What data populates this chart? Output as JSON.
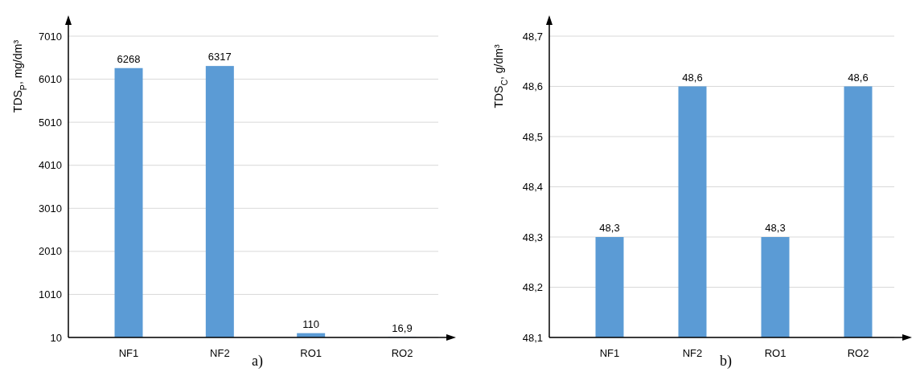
{
  "chart_data": [
    {
      "type": "bar",
      "ylabel": "TDS$_{P}$, mg/dm³",
      "categories": [
        "NF1",
        "NF2",
        "RO1",
        "RO2"
      ],
      "values": [
        6268,
        6317,
        110,
        16.9
      ],
      "value_labels": [
        "6268",
        "6317",
        "110",
        "16,9"
      ],
      "color": "#5b9bd5",
      "ylim": [
        10,
        7010
      ],
      "yticks": [
        10,
        1010,
        2010,
        3010,
        4010,
        5010,
        6010,
        7010
      ],
      "grid": "y",
      "annotations": [
        "a)"
      ]
    },
    {
      "type": "bar",
      "ylabel": "TDS$_{C}$, g/dm³",
      "categories": [
        "NF1",
        "NF2",
        "RO1",
        "RO2"
      ],
      "values": [
        48.3,
        48.6,
        48.3,
        48.6
      ],
      "value_labels": [
        "48,3",
        "48,6",
        "48,3",
        "48,6"
      ],
      "color": "#5b9bd5",
      "ylim": [
        48.1,
        48.7
      ],
      "yticks": [
        {
          "value": 48.1,
          "label": "48,1"
        },
        {
          "value": 48.2,
          "label": "48,2"
        },
        {
          "value": 48.3,
          "label": "48,3"
        },
        {
          "value": 48.4,
          "label": "48,4"
        },
        {
          "value": 48.5,
          "label": "48,5"
        },
        {
          "value": 48.6,
          "label": "48,6"
        },
        {
          "value": 48.7,
          "label": "48,7"
        }
      ],
      "grid": "y",
      "annotations": [
        "b)"
      ]
    }
  ]
}
